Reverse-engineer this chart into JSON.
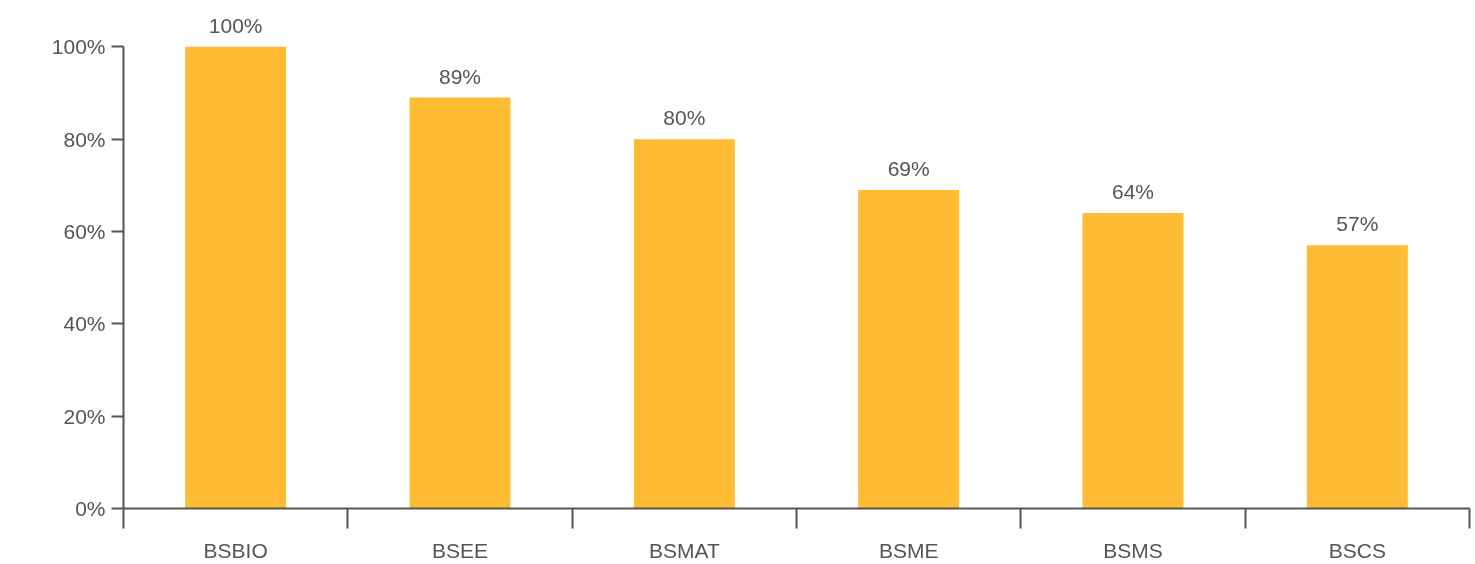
{
  "chart_data": {
    "type": "bar",
    "categories": [
      "BSBIO",
      "BSEE",
      "BSMAT",
      "BSME",
      "BSMS",
      "BSCS"
    ],
    "values": [
      100,
      89,
      80,
      69,
      64,
      57
    ],
    "color": "#fdbc33",
    "ylim": [
      0,
      100
    ],
    "yticks": [
      {
        "value": 0,
        "label": "0%"
      },
      {
        "value": 20,
        "label": "20%"
      },
      {
        "value": 40,
        "label": "40%"
      },
      {
        "value": 60,
        "label": "60%"
      },
      {
        "value": 80,
        "label": "80%"
      },
      {
        "value": 100,
        "label": "100%"
      }
    ],
    "value_labels": [
      "100%",
      "89%",
      "80%",
      "69%",
      "64%",
      "57%"
    ],
    "grid": false
  }
}
